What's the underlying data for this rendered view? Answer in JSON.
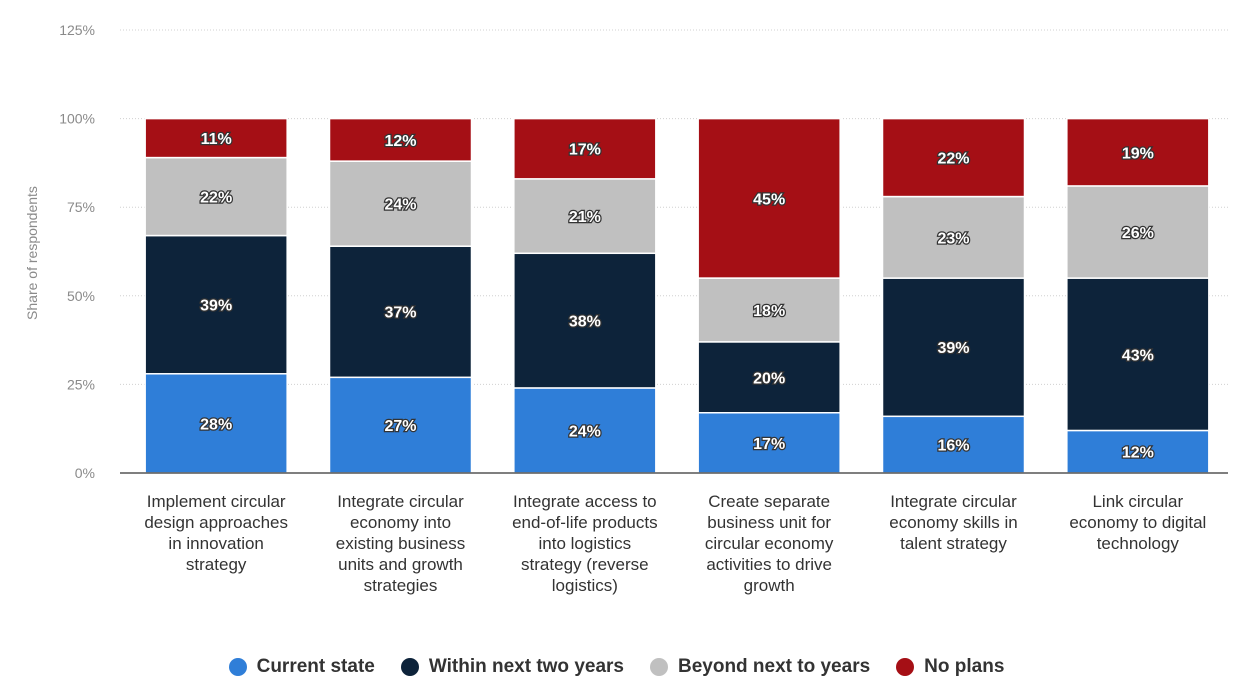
{
  "chart_data": {
    "type": "bar",
    "stacked": true,
    "ylabel": "Share of respondents",
    "ylim": [
      0,
      125
    ],
    "yticks": [
      "0%",
      "25%",
      "50%",
      "75%",
      "100%",
      "125%"
    ],
    "grid": true,
    "legend_position": "bottom",
    "categories": [
      [
        "Implement circular",
        "design approaches",
        "in innovation",
        "strategy"
      ],
      [
        "Integrate circular",
        "economy into",
        "existing business",
        "units and growth",
        "strategies"
      ],
      [
        "Integrate access to",
        "end-of-life products",
        "into logistics",
        "strategy (reverse",
        "logistics)"
      ],
      [
        "Create separate",
        "business unit for",
        "circular economy",
        "activities to drive",
        "growth"
      ],
      [
        "Integrate circular",
        "economy skills in",
        "talent strategy"
      ],
      [
        "Link circular",
        "economy to digital",
        "technology"
      ]
    ],
    "series": [
      {
        "name": "Current state",
        "color": "#2f7ed8",
        "values": [
          28,
          27,
          24,
          17,
          16,
          12
        ],
        "labels": [
          "28%",
          "27%",
          "24%",
          "17%",
          "16%",
          "12%"
        ]
      },
      {
        "name": "Within next two years",
        "color": "#0d233a",
        "values": [
          39,
          37,
          38,
          20,
          39,
          43
        ],
        "labels": [
          "39%",
          "37%",
          "38%",
          "20%",
          "39%",
          "43%"
        ]
      },
      {
        "name": "Beyond next to years",
        "color": "#c0c0c0",
        "values": [
          22,
          24,
          21,
          18,
          23,
          26
        ],
        "labels": [
          "22%",
          "24%",
          "21%",
          "18%",
          "23%",
          "26%"
        ]
      },
      {
        "name": "No plans",
        "color": "#a50f15",
        "values": [
          11,
          12,
          17,
          45,
          22,
          19
        ],
        "labels": [
          "11%",
          "12%",
          "17%",
          "45%",
          "22%",
          "19%"
        ]
      }
    ]
  }
}
